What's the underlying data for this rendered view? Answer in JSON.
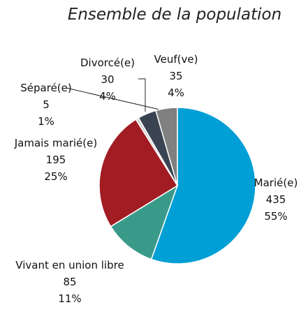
{
  "chart_data": {
    "type": "pie",
    "title": "Ensemble de la population",
    "categories": [
      "Marié(e)",
      "Vivant en union libre",
      "Jamais marié(e)",
      "Séparé(e)",
      "Divorcé(e)",
      "Veuf(ve)"
    ],
    "values": [
      435,
      85,
      195,
      5,
      30,
      35
    ],
    "percent_labels": [
      "55%",
      "11%",
      "25%",
      "1%",
      "4%",
      "4%"
    ],
    "colors": [
      "#009fd6",
      "#3a9a8a",
      "#a11d23",
      "#d4d4d4",
      "#3a4351",
      "#808080"
    ]
  }
}
